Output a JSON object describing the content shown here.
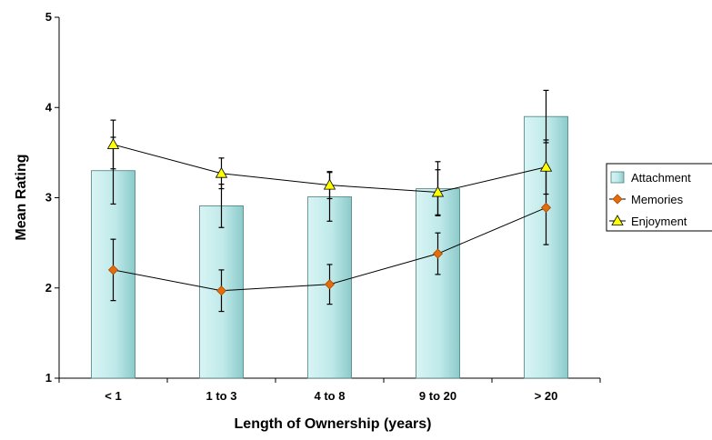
{
  "chart_data": {
    "type": "bar",
    "title": "",
    "xlabel": "Length of Ownership (years)",
    "ylabel": "Mean Rating",
    "ylim": [
      1,
      5
    ],
    "yticks": [
      "1",
      "2",
      "3",
      "4",
      "5"
    ],
    "categories": [
      "< 1",
      "1 to 3",
      "4 to 8",
      "9 to 20",
      "> 20"
    ],
    "grid": false,
    "legend_position": "right",
    "series": [
      {
        "name": "Attachment",
        "kind": "bar",
        "color": "#bfe9e9",
        "values": [
          3.3,
          2.91,
          3.01,
          3.1,
          3.9
        ],
        "error": [
          0.37,
          0.24,
          0.27,
          0.3,
          0.29
        ]
      },
      {
        "name": "Memories",
        "kind": "line",
        "marker": "diamond",
        "color": "#e46c0a",
        "values": [
          2.2,
          1.97,
          2.04,
          2.38,
          2.89
        ],
        "error": [
          0.34,
          0.23,
          0.22,
          0.23,
          0.41
        ]
      },
      {
        "name": "Enjoyment",
        "kind": "line",
        "marker": "triangle",
        "color": "#ffff00",
        "values": [
          3.59,
          3.27,
          3.14,
          3.06,
          3.34
        ],
        "error": [
          0.27,
          0.17,
          0.15,
          0.25,
          0.3
        ]
      }
    ]
  }
}
